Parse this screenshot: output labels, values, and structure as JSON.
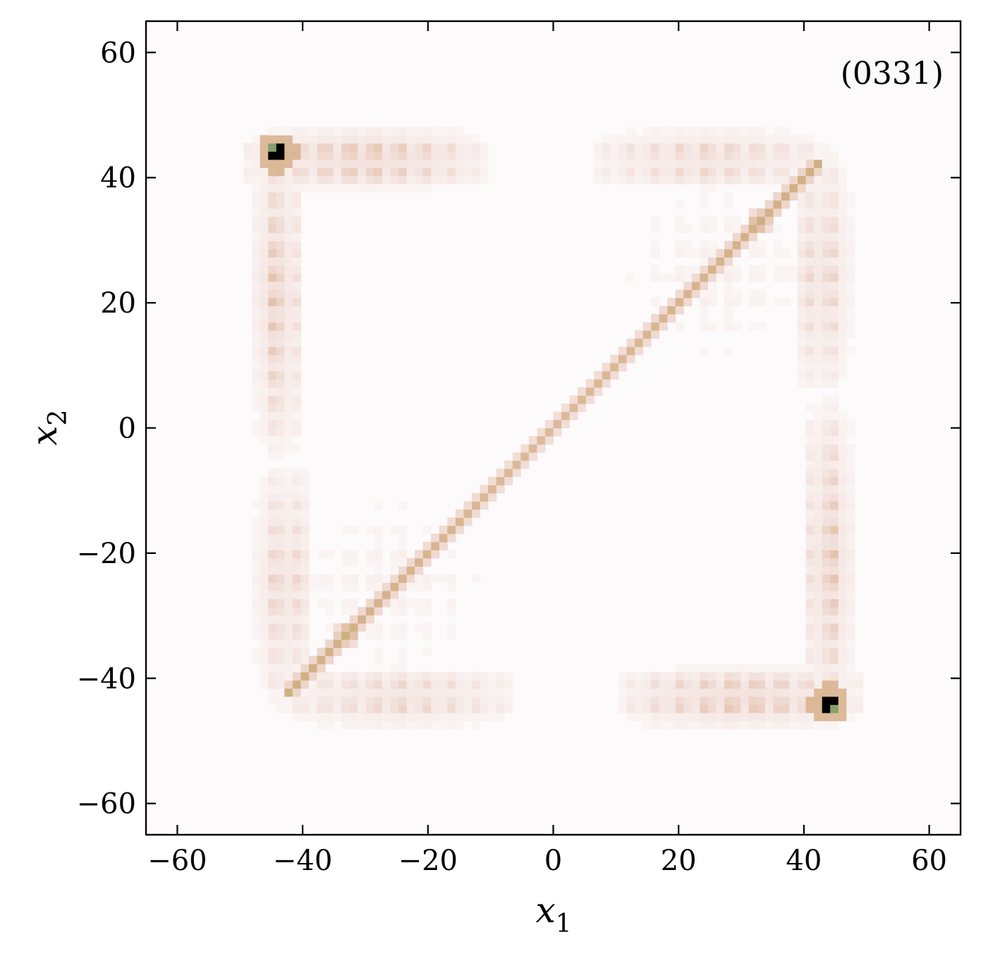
{
  "chart_data": {
    "type": "heatmap",
    "annotation": "(0331)",
    "xlabel": {
      "var": "x",
      "sub": "1"
    },
    "ylabel": {
      "var": "x",
      "sub": "2"
    },
    "xlim": [
      -65,
      65
    ],
    "ylim": [
      -65,
      65
    ],
    "xticks": [
      -60,
      -40,
      -20,
      0,
      20,
      40,
      60
    ],
    "yticks": [
      -60,
      -40,
      -20,
      0,
      20,
      40,
      60
    ],
    "xtick_labels": [
      "−60",
      "−40",
      "−20",
      "0",
      "20",
      "40",
      "60"
    ],
    "ytick_labels": [
      "−60",
      "−40",
      "−20",
      "0",
      "20",
      "40",
      "60"
    ],
    "grid": false,
    "colormap": [
      "#fcfafa",
      "#f1dcd6",
      "#e2bfa6",
      "#d4b289",
      "#b8ad66",
      "#6e9a6e",
      "#2f7f8c",
      "#1f3f86",
      "#000000"
    ],
    "grid_resolution": 1.3,
    "features": {
      "diagonal": {
        "from": -42,
        "to": 42,
        "width": 1.0,
        "intensity": 0.35
      },
      "peaks": [
        {
          "x": -44,
          "y": 44,
          "intensity": 1.0
        },
        {
          "x": 44,
          "y": -44,
          "intensity": 1.0
        }
      ],
      "peak_lobe": {
        "offsets": [
          -2.2,
          0
        ],
        "value": 0.8
      },
      "stripe_regions": [
        {
          "x": [
            -50,
            -10
          ],
          "y": [
            38,
            48
          ],
          "intensity": 0.3
        },
        {
          "x": [
            -48,
            -40
          ],
          "y": [
            -5,
            48
          ],
          "intensity": 0.28
        },
        {
          "x": [
            10,
            50
          ],
          "y": [
            -48,
            -38
          ],
          "intensity": 0.3
        },
        {
          "x": [
            40,
            48
          ],
          "y": [
            -48,
            5
          ],
          "intensity": 0.28
        },
        {
          "x": [
            5,
            45
          ],
          "y": [
            38,
            48
          ],
          "intensity": 0.22
        },
        {
          "x": [
            38,
            48
          ],
          "y": [
            5,
            45
          ],
          "intensity": 0.22
        },
        {
          "x": [
            -45,
            -5
          ],
          "y": [
            -48,
            -38
          ],
          "intensity": 0.22
        },
        {
          "x": [
            -48,
            -38
          ],
          "y": [
            -45,
            -5
          ],
          "intensity": 0.22
        },
        {
          "x": [
            10,
            42
          ],
          "y": [
            10,
            40
          ],
          "intensity": 0.06
        },
        {
          "x": [
            -42,
            -10
          ],
          "y": [
            -40,
            -10
          ],
          "intensity": 0.06
        }
      ],
      "corner_blobs": [
        {
          "x": 33,
          "y": 33,
          "intensity": 0.45
        },
        {
          "x": -33,
          "y": -33,
          "intensity": 0.45
        }
      ]
    }
  }
}
